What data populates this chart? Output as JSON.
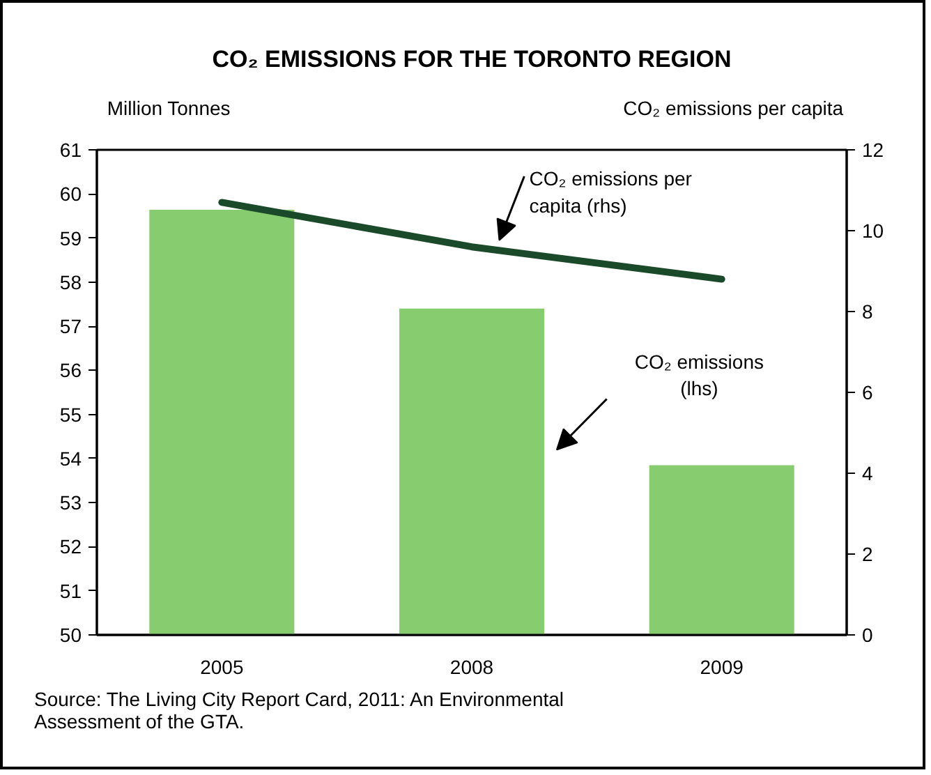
{
  "chart_data": {
    "type": "bar",
    "title": "CO₂ EMISSIONS FOR THE TORONTO REGION",
    "ylabel": "Million Tonnes",
    "y2label": "CO₂ emissions per capita",
    "categories": [
      "2005",
      "2008",
      "2009"
    ],
    "series": [
      {
        "color": "#88cc70",
        "values": [
          59.64,
          57.4,
          53.85
        ]
      },
      {
        "type": "line",
        "axis": "y2",
        "color": "#1b4a2a",
        "values": [
          10.7,
          9.6,
          8.8
        ]
      }
    ],
    "ylim": [
      50,
      61
    ],
    "yticks": [
      50,
      51,
      52,
      53,
      54,
      55,
      56,
      57,
      58,
      59,
      60,
      61
    ],
    "y2lim": [
      0,
      12
    ],
    "y2ticks": [
      0,
      2,
      4,
      6,
      8,
      10,
      12
    ],
    "grid": false,
    "legend": false,
    "annotations": [
      "CO₂ emissions per capita (rhs)",
      "CO₂ emissions (lhs)",
      "Source: The Living City Report Card, 2011: An Environmental Assessment of the GTA."
    ]
  }
}
